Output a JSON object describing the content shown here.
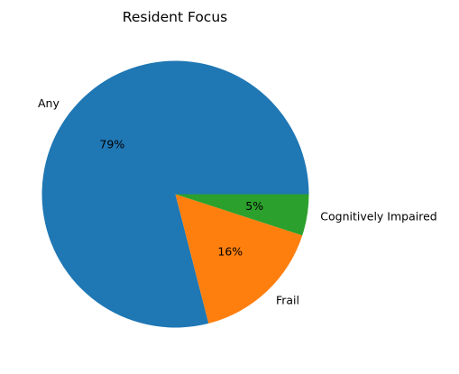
{
  "chart_data": {
    "type": "pie",
    "title": "Resident Focus",
    "start_angle_deg": 0,
    "direction": "counterclockwise",
    "slices": [
      {
        "label": "Any",
        "value": 79,
        "pct_label": "79%",
        "color": "#1f77b4"
      },
      {
        "label": "Frail",
        "value": 16,
        "pct_label": "16%",
        "color": "#ff7f0e"
      },
      {
        "label": "Cognitively Impaired",
        "value": 5,
        "pct_label": "5%",
        "color": "#2ca02c"
      }
    ]
  }
}
